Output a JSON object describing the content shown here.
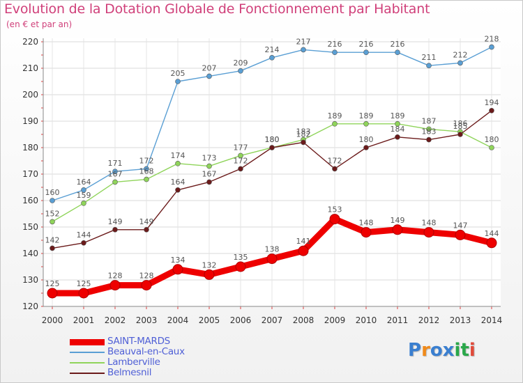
{
  "chart_data": {
    "type": "line",
    "title": "Evolution de la Dotation Globale de Fonctionnement par Habitant",
    "subtitle": "(en € et par an)",
    "x": [
      "2000",
      "2001",
      "2002",
      "2003",
      "2004",
      "2005",
      "2006",
      "2007",
      "2008",
      "2009",
      "2010",
      "2011",
      "2012",
      "2013",
      "2014"
    ],
    "ylim": [
      120,
      220
    ],
    "yticks": [
      120,
      130,
      140,
      150,
      160,
      170,
      180,
      190,
      200,
      210,
      220
    ],
    "grid": true,
    "legend_position": "bottom-left",
    "series": [
      {
        "name": "SAINT-MARDS",
        "color": "#ee0000",
        "values": [
          125,
          125,
          128,
          128,
          134,
          132,
          135,
          138,
          141,
          153,
          148,
          149,
          148,
          147,
          144
        ]
      },
      {
        "name": "Beauval-en-Caux",
        "color": "#5a9fd4",
        "values": [
          160,
          164,
          171,
          172,
          205,
          207,
          209,
          214,
          217,
          216,
          216,
          216,
          211,
          212,
          218
        ]
      },
      {
        "name": "Lamberville",
        "color": "#8fd45a",
        "values": [
          152,
          159,
          167,
          168,
          174,
          173,
          177,
          180,
          183,
          189,
          189,
          189,
          187,
          186,
          180
        ]
      },
      {
        "name": "Belmesnil",
        "color": "#6b1a1a",
        "values": [
          142,
          144,
          149,
          149,
          164,
          167,
          172,
          180,
          182,
          172,
          180,
          184,
          183,
          185,
          194
        ]
      }
    ]
  },
  "logo": {
    "letters": [
      "P",
      "r",
      "o",
      "x",
      "i",
      "t",
      "i"
    ],
    "colors": [
      "#3a7fd0",
      "#f08a1a",
      "#3a7fd0",
      "#3a7fd0",
      "#2aa84a",
      "#2aa84a",
      "#e04a3a"
    ]
  }
}
